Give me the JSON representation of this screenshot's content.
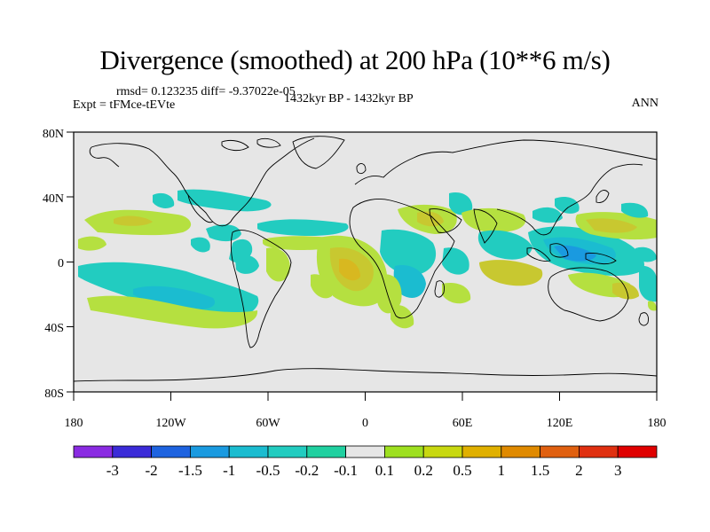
{
  "title": "Divergence (smoothed) at 200 hPa (10**6 m/s)",
  "stats": "rmsd= 0.123235  diff= -9.37022e-05",
  "experiment": "Expt = tFMce-tEVte",
  "period": "1432kyr BP - 1432kyr BP",
  "season": "ANN",
  "map": {
    "lon_ticks": [
      "180",
      "120W",
      "60W",
      "0",
      "60E",
      "120E",
      "180"
    ],
    "lat_ticks": [
      "80N",
      "40N",
      "0",
      "40S",
      "80S"
    ],
    "background_color": "#e6e6e6"
  },
  "colorbar": {
    "labels": [
      "-3",
      "-2",
      "-1.5",
      "-1",
      "-0.5",
      "-0.2",
      "-0.1",
      "0.1",
      "0.2",
      "0.5",
      "1",
      "1.5",
      "2",
      "3"
    ],
    "colors": [
      "#8a2be2",
      "#3b2bd8",
      "#1e63e0",
      "#1a9ae0",
      "#1bbcd0",
      "#22ccc0",
      "#20d0a0",
      "#e6e6e6",
      "#9ee020",
      "#c8d810",
      "#e0b000",
      "#e08a00",
      "#e06010",
      "#e03010",
      "#e00000"
    ]
  }
}
